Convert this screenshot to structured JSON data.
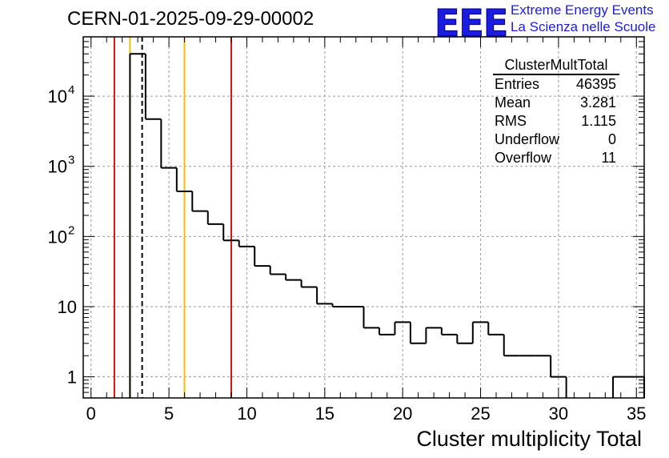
{
  "chart_data": {
    "type": "histogram",
    "title": "CERN-01-2025-09-29-00002",
    "xlabel": "Cluster multiplicity Total",
    "ylabel": "",
    "xlim": [
      -0.5,
      35.5
    ],
    "ylim": [
      0.5,
      70000
    ],
    "yscale": "log",
    "grid": true,
    "bin_edges": [
      0.5,
      1.5,
      2.5,
      3.5,
      4.5,
      5.5,
      6.5,
      7.5,
      8.5,
      9.5,
      10.5,
      11.5,
      12.5,
      13.5,
      14.5,
      15.5,
      16.5,
      17.5,
      18.5,
      19.5,
      20.5,
      21.5,
      22.5,
      23.5,
      24.5,
      25.5,
      26.5,
      27.5,
      28.5,
      29.5,
      30.5,
      31.5,
      32.5,
      33.5,
      34.5,
      35.5
    ],
    "counts": [
      0,
      0,
      40000,
      4700,
      950,
      440,
      230,
      150,
      88,
      72,
      38,
      29,
      24,
      19,
      11,
      10,
      10,
      5,
      4,
      6,
      3,
      5,
      4,
      3,
      6,
      4,
      2,
      2,
      2,
      1,
      0,
      0,
      0,
      1,
      1
    ],
    "x_ticks": [
      "0",
      "5",
      "10",
      "15",
      "20",
      "25",
      "30",
      "35"
    ],
    "x_tick_values": [
      0,
      5,
      10,
      15,
      20,
      25,
      30,
      35
    ],
    "y_tick_values": [
      1,
      10,
      100,
      1000,
      10000
    ],
    "y_tick_labels": [
      {
        "base": "1",
        "exp": ""
      },
      {
        "base": "10",
        "exp": ""
      },
      {
        "base": "10",
        "exp": "2"
      },
      {
        "base": "10",
        "exp": "3"
      },
      {
        "base": "10",
        "exp": "4"
      }
    ],
    "reference_lines": [
      {
        "x": 1.5,
        "color": "#dd1111",
        "style": "solid"
      },
      {
        "x": 2.5,
        "color": "#f0c000",
        "style": "solid"
      },
      {
        "x": 3.281,
        "color": "#000000",
        "style": "dashed"
      },
      {
        "x": 6.0,
        "color": "#f0c000",
        "style": "solid"
      },
      {
        "x": 9.0,
        "color": "#dd1111",
        "style": "solid"
      }
    ],
    "stats": {
      "title": "ClusterMultTotal",
      "rows": [
        {
          "label": "Entries",
          "value": "46395"
        },
        {
          "label": "Mean",
          "value": "3.281"
        },
        {
          "label": "RMS",
          "value": "1.115"
        },
        {
          "label": "Underflow",
          "value": "0"
        },
        {
          "label": "Overflow",
          "value": "11"
        }
      ]
    }
  },
  "logo": {
    "text": "EEE",
    "line1": "Extreme Energy Events",
    "line2": "La Scienza nelle Scuole"
  }
}
